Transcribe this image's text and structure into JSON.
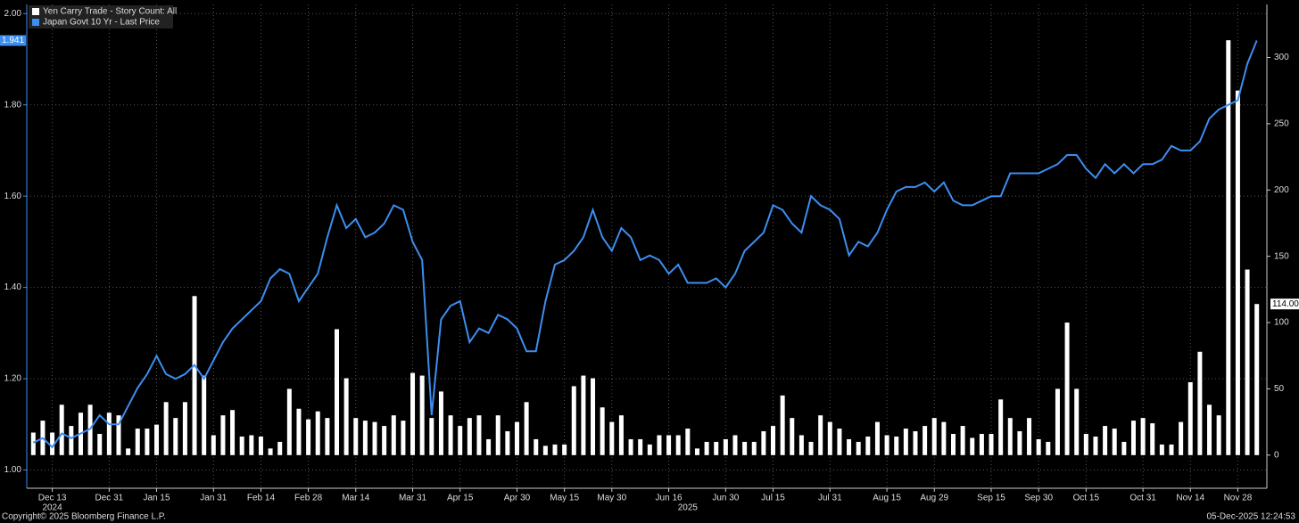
{
  "chart_data": {
    "type": "bar-line",
    "series": [
      {
        "name": "Yen Carry Trade - Story Count: All",
        "color": "#ffffff",
        "axis": "y2",
        "type": "bar",
        "last_label": "114.00",
        "values": [
          17,
          26,
          17,
          38,
          22,
          32,
          38,
          16,
          32,
          30,
          5,
          20,
          20,
          23,
          40,
          28,
          40,
          120,
          60,
          15,
          30,
          34,
          14,
          15,
          14,
          5,
          10,
          50,
          35,
          27,
          33,
          28,
          95,
          58,
          28,
          26,
          25,
          22,
          30,
          26,
          62,
          60,
          28,
          48,
          30,
          22,
          28,
          30,
          12,
          30,
          18,
          25,
          40,
          12,
          7,
          8,
          8,
          52,
          60,
          58,
          36,
          25,
          30,
          12,
          12,
          8,
          15,
          15,
          15,
          20,
          5,
          10,
          10,
          12,
          15,
          10,
          10,
          18,
          22,
          45,
          28,
          15,
          10,
          30,
          25,
          20,
          12,
          10,
          14,
          25,
          15,
          14,
          20,
          18,
          22,
          28,
          25,
          16,
          22,
          13,
          16,
          16,
          42,
          28,
          18,
          28,
          12,
          10,
          50,
          100,
          50,
          16,
          14,
          22,
          20,
          10,
          26,
          28,
          24,
          8,
          8,
          25,
          55,
          78,
          38,
          30,
          313,
          275,
          140,
          114
        ]
      },
      {
        "name": "Japan Govt 10 Yr - Last Price",
        "color": "#3d8ef0",
        "axis": "y",
        "type": "line",
        "last_label": "1.941",
        "values": [
          1.06,
          1.07,
          1.05,
          1.08,
          1.07,
          1.08,
          1.09,
          1.12,
          1.1,
          1.1,
          1.14,
          1.18,
          1.21,
          1.25,
          1.21,
          1.2,
          1.21,
          1.23,
          1.2,
          1.24,
          1.28,
          1.31,
          1.33,
          1.35,
          1.37,
          1.42,
          1.44,
          1.43,
          1.37,
          1.4,
          1.43,
          1.51,
          1.58,
          1.53,
          1.55,
          1.51,
          1.52,
          1.54,
          1.58,
          1.57,
          1.5,
          1.46,
          1.12,
          1.33,
          1.36,
          1.37,
          1.28,
          1.31,
          1.3,
          1.34,
          1.33,
          1.31,
          1.26,
          1.26,
          1.37,
          1.45,
          1.46,
          1.48,
          1.51,
          1.57,
          1.51,
          1.48,
          1.53,
          1.51,
          1.46,
          1.47,
          1.46,
          1.43,
          1.45,
          1.41,
          1.41,
          1.41,
          1.42,
          1.4,
          1.43,
          1.48,
          1.5,
          1.52,
          1.58,
          1.57,
          1.54,
          1.52,
          1.6,
          1.58,
          1.57,
          1.55,
          1.47,
          1.5,
          1.49,
          1.52,
          1.57,
          1.61,
          1.62,
          1.62,
          1.63,
          1.61,
          1.63,
          1.59,
          1.58,
          1.58,
          1.59,
          1.6,
          1.6,
          1.65,
          1.65,
          1.65,
          1.65,
          1.66,
          1.67,
          1.69,
          1.69,
          1.66,
          1.64,
          1.67,
          1.65,
          1.67,
          1.65,
          1.67,
          1.67,
          1.68,
          1.71,
          1.7,
          1.7,
          1.72,
          1.77,
          1.79,
          1.8,
          1.81,
          1.89,
          1.941
        ]
      }
    ],
    "categories": [
      null,
      null,
      "Dec 13",
      null,
      null,
      null,
      null,
      null,
      "Dec 31",
      null,
      null,
      null,
      null,
      "Jan 15",
      null,
      null,
      null,
      null,
      null,
      "Jan 31",
      null,
      null,
      null,
      null,
      "Feb 14",
      null,
      null,
      null,
      null,
      "Feb 28",
      null,
      null,
      null,
      null,
      "Mar 14",
      null,
      null,
      null,
      null,
      null,
      "Mar 31",
      null,
      null,
      null,
      null,
      "Apr 15",
      null,
      null,
      null,
      null,
      null,
      "Apr 30",
      null,
      null,
      null,
      null,
      "May 15",
      null,
      null,
      null,
      null,
      "May 30",
      null,
      null,
      null,
      null,
      null,
      "Jun 16",
      null,
      null,
      null,
      null,
      null,
      "Jun 30",
      null,
      null,
      null,
      null,
      "Jul 15",
      null,
      null,
      null,
      null,
      null,
      "Jul 31",
      null,
      null,
      null,
      null,
      null,
      "Aug 15",
      null,
      null,
      null,
      null,
      "Aug 29",
      null,
      null,
      null,
      null,
      null,
      "Sep 15",
      null,
      null,
      null,
      null,
      "Sep 30",
      null,
      null,
      null,
      null,
      "Oct 15",
      null,
      null,
      null,
      null,
      null,
      "Oct 31",
      null,
      null,
      null,
      null,
      "Nov 14",
      null,
      null,
      null,
      null,
      "Nov 28",
      null,
      null
    ],
    "x_groups": [
      {
        "label": "2024",
        "category": 2
      },
      {
        "label": "2025",
        "category": 69
      }
    ],
    "ylim": [
      0.96,
      2.02
    ],
    "yticks": [
      {
        "value": 1,
        "label": "1.00"
      },
      {
        "value": 1.2,
        "label": "1.20"
      },
      {
        "value": 1.4,
        "label": "1.40"
      },
      {
        "value": 1.6,
        "label": "1.60"
      },
      {
        "value": 1.8,
        "label": "1.80"
      },
      {
        "value": 2,
        "label": "2.00"
      }
    ],
    "y2lim": [
      -25,
      340
    ],
    "y2ticks": [
      0,
      50,
      100,
      150,
      200,
      250,
      300
    ],
    "grid": true,
    "legend": "top-left",
    "footer_left": "Copyright© 2025 Bloomberg Finance L.P.",
    "footer_right": "05-Dec-2025 12:24:53"
  }
}
